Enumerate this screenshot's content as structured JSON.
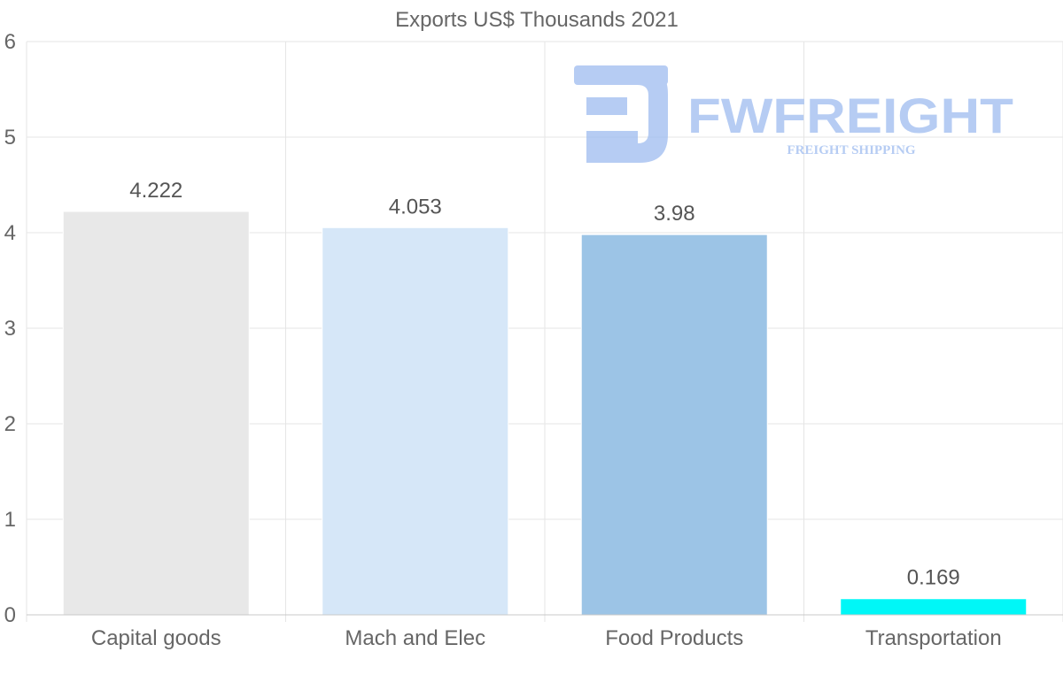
{
  "chart_data": {
    "type": "bar",
    "title": "Exports US$ Thousands 2021",
    "categories": [
      "Capital goods",
      "Mach and Elec",
      "Food Products",
      "Transportation"
    ],
    "values": [
      4.222,
      4.053,
      3.98,
      0.169
    ],
    "value_labels": [
      "4.222",
      "4.053",
      "3.98",
      "0.169"
    ],
    "colors": [
      "#e8e8e8",
      "#d6e7f8",
      "#9cc4e6",
      "#00f7f7"
    ],
    "ylim": [
      0,
      6
    ],
    "yticks": [
      0,
      1,
      2,
      3,
      4,
      5,
      6
    ],
    "xlabel": "",
    "ylabel": "",
    "grid": true
  },
  "watermark": {
    "brand": "FWFREIGHT",
    "tagline": "FREIGHT SHIPPING",
    "color": "#9ebcf0"
  }
}
